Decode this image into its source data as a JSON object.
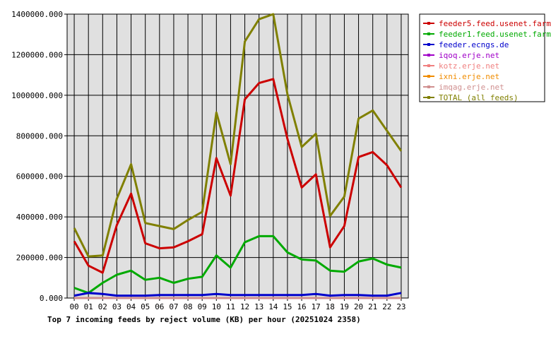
{
  "chart_data": {
    "type": "line",
    "title": "Top 7 incoming feeds by reject volume (KB) per hour (20251024 2358)",
    "xlabel": "",
    "ylabel": "",
    "ylim": [
      0,
      1400000
    ],
    "y_ticks": [
      "0.000",
      "200000.000",
      "400000.000",
      "600000.000",
      "800000.000",
      "1000000.000",
      "1200000.000",
      "1400000.000"
    ],
    "grid": true,
    "legend_position": "right",
    "categories": [
      "00",
      "01",
      "02",
      "03",
      "04",
      "05",
      "06",
      "07",
      "08",
      "09",
      "10",
      "11",
      "12",
      "13",
      "14",
      "15",
      "16",
      "17",
      "18",
      "19",
      "20",
      "21",
      "22",
      "23"
    ],
    "series": [
      {
        "name": "feeder5.feed.usenet.farm",
        "color": "#cc0000",
        "values": [
          280000,
          160000,
          125000,
          360000,
          515000,
          270000,
          245000,
          250000,
          280000,
          315000,
          690000,
          505000,
          980000,
          1060000,
          1080000,
          785000,
          545000,
          610000,
          250000,
          355000,
          695000,
          720000,
          655000,
          545000
        ]
      },
      {
        "name": "feeder1.feed.usenet.farm",
        "color": "#00aa00",
        "values": [
          50000,
          25000,
          75000,
          115000,
          135000,
          90000,
          100000,
          75000,
          95000,
          105000,
          210000,
          150000,
          275000,
          305000,
          305000,
          225000,
          190000,
          185000,
          135000,
          130000,
          180000,
          195000,
          165000,
          150000
        ]
      },
      {
        "name": "feeder.ecngs.de",
        "color": "#0000cc",
        "values": [
          12000,
          25000,
          20000,
          12000,
          12000,
          12000,
          15000,
          15000,
          15000,
          15000,
          20000,
          15000,
          15000,
          15000,
          15000,
          15000,
          15000,
          20000,
          12000,
          15000,
          15000,
          12000,
          12000,
          25000
        ]
      },
      {
        "name": "iqoq.erje.net",
        "color": "#a000c8",
        "values": [
          0,
          0,
          0,
          0,
          0,
          0,
          0,
          0,
          0,
          0,
          0,
          0,
          0,
          0,
          0,
          0,
          0,
          0,
          0,
          0,
          0,
          0,
          0,
          0
        ]
      },
      {
        "name": "kotz.erje.net",
        "color": "#f08080",
        "values": [
          0,
          0,
          0,
          0,
          0,
          0,
          0,
          0,
          0,
          0,
          0,
          0,
          0,
          0,
          0,
          0,
          0,
          0,
          0,
          0,
          0,
          0,
          0,
          0
        ]
      },
      {
        "name": "ixni.erje.net",
        "color": "#f08c00",
        "values": [
          0,
          0,
          0,
          0,
          0,
          0,
          0,
          0,
          0,
          0,
          0,
          0,
          0,
          0,
          0,
          0,
          0,
          0,
          0,
          0,
          0,
          0,
          0,
          0
        ]
      },
      {
        "name": "imqag.erje.net",
        "color": "#d09090",
        "values": [
          0,
          0,
          0,
          0,
          0,
          0,
          0,
          0,
          0,
          0,
          0,
          0,
          0,
          0,
          0,
          0,
          0,
          0,
          0,
          0,
          0,
          0,
          0,
          0
        ]
      },
      {
        "name": "TOTAL (all feeds)",
        "color": "#808000",
        "values": [
          345000,
          205000,
          210000,
          490000,
          660000,
          370000,
          355000,
          340000,
          385000,
          425000,
          915000,
          660000,
          1265000,
          1375000,
          1400000,
          1005000,
          745000,
          810000,
          405000,
          500000,
          885000,
          925000,
          825000,
          725000
        ]
      }
    ]
  }
}
